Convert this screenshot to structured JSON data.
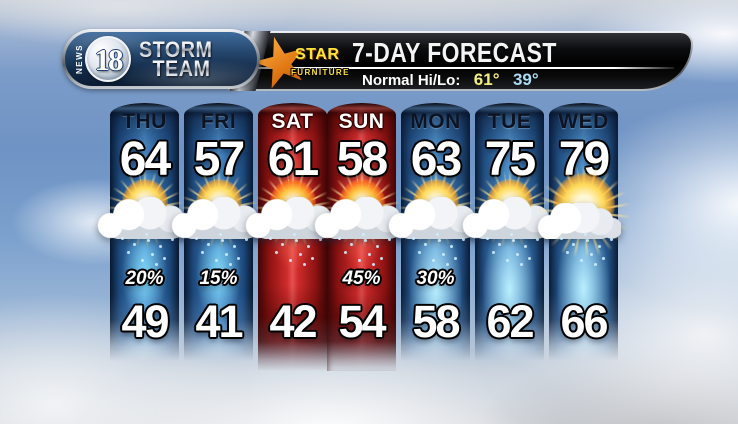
{
  "header": {
    "logo": {
      "news": "NEWS",
      "channel": "18",
      "storm": "STORM",
      "team": "TEAM"
    },
    "sponsor": {
      "name": "STAR",
      "tagline": "FURNITURE"
    },
    "title": "7-DAY FORECAST",
    "normal": {
      "label": "Normal Hi/Lo:",
      "hi": "61°",
      "lo": "39°"
    },
    "colors": {
      "normal_hi": "#f2ee7d",
      "normal_lo": "#a9ddf5",
      "sponsor_star": "#e8821d",
      "sponsor_text": "#ffe43a",
      "warm_column": "#cf2b2b",
      "cool_column": "#3a77b4"
    }
  },
  "forecast": {
    "days": [
      {
        "day": "THU",
        "hi": 64,
        "lo": 49,
        "precip": "20%",
        "theme": "blue",
        "icon": "partly-cloudy"
      },
      {
        "day": "FRI",
        "hi": 57,
        "lo": 41,
        "precip": "15%",
        "theme": "blue",
        "icon": "partly-cloudy"
      },
      {
        "day": "SAT",
        "hi": 61,
        "lo": 42,
        "precip": "",
        "theme": "red",
        "icon": "partly-cloudy"
      },
      {
        "day": "SUN",
        "hi": 58,
        "lo": 54,
        "precip": "45%",
        "theme": "red",
        "icon": "rain"
      },
      {
        "day": "MON",
        "hi": 63,
        "lo": 58,
        "precip": "30%",
        "theme": "blue-light",
        "icon": "rain"
      },
      {
        "day": "TUE",
        "hi": 75,
        "lo": 62,
        "precip": "",
        "theme": "blue-light",
        "icon": "partly-cloudy"
      },
      {
        "day": "WED",
        "hi": 79,
        "lo": 66,
        "precip": "",
        "theme": "blue-light",
        "icon": "mostly-sunny"
      }
    ]
  },
  "chart_data": {
    "type": "table",
    "title": "7-DAY FORECAST",
    "columns": [
      "day",
      "high",
      "low",
      "precip_chance",
      "condition"
    ],
    "rows": [
      [
        "THU",
        64,
        49,
        "20%",
        "partly-cloudy"
      ],
      [
        "FRI",
        57,
        41,
        "15%",
        "partly-cloudy"
      ],
      [
        "SAT",
        61,
        42,
        "",
        "partly-cloudy"
      ],
      [
        "SUN",
        58,
        54,
        "45%",
        "rain"
      ],
      [
        "MON",
        63,
        58,
        "30%",
        "rain"
      ],
      [
        "TUE",
        75,
        62,
        "",
        "partly-cloudy"
      ],
      [
        "WED",
        79,
        66,
        "",
        "mostly-sunny"
      ]
    ],
    "annotations": {
      "normal_hi": 61,
      "normal_lo": 39
    }
  }
}
